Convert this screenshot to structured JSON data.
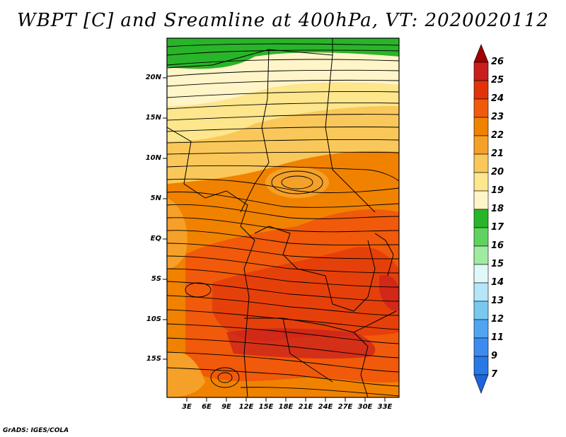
{
  "title": "WBPT [C] and Sreamline at 400hPa, VT: 2020020112",
  "y_axis": [
    "20N",
    "15N",
    "10N",
    "5N",
    "EQ",
    "5S",
    "10S",
    "15S"
  ],
  "x_axis": [
    "3E",
    "6E",
    "9E",
    "12E",
    "15E",
    "18E",
    "21E",
    "24E",
    "27E",
    "30E",
    "33E"
  ],
  "colorbar": {
    "labels": [
      "26",
      "25",
      "24",
      "23",
      "22",
      "21",
      "20",
      "19",
      "18",
      "17",
      "16",
      "15",
      "14",
      "13",
      "12",
      "11",
      "9",
      "7"
    ],
    "colors": [
      "#a00000",
      "#c81e1e",
      "#e1320a",
      "#f05a0a",
      "#f08200",
      "#f5a028",
      "#fac85a",
      "#fde68c",
      "#fff5c8",
      "#29b529",
      "#5fd35f",
      "#a0eba0",
      "#e0f8f8",
      "#b4e6fa",
      "#78c8f0",
      "#50a5f0",
      "#3c8cf0",
      "#1e64dc"
    ]
  },
  "credit": "GrADS: IGES/COLA"
}
